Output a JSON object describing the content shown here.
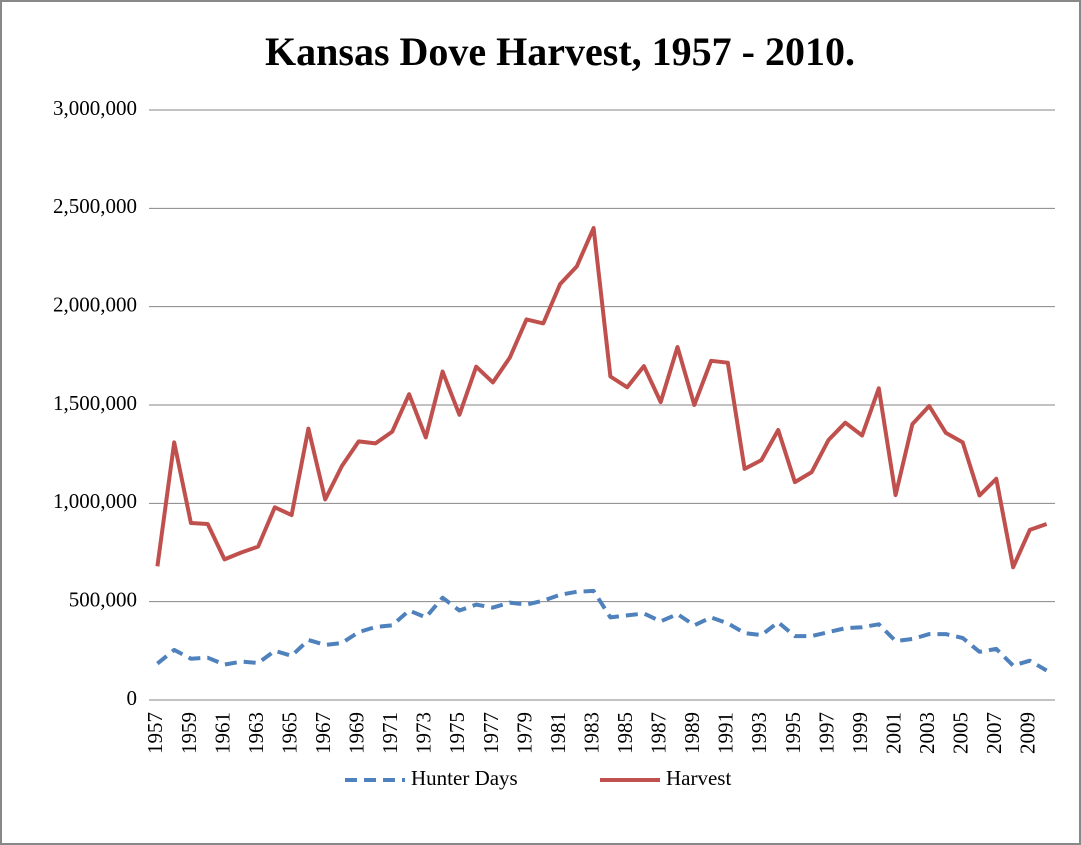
{
  "chart_data": {
    "type": "line",
    "title": "Kansas Dove Harvest, 1957 - 2010.",
    "categories": [
      "1957",
      null,
      "1959",
      null,
      "1961",
      null,
      "1963",
      null,
      "1965",
      null,
      "1967",
      null,
      "1969",
      null,
      "1971",
      null,
      "1973",
      null,
      "1975",
      null,
      "1977",
      null,
      "1979",
      null,
      "1981",
      null,
      "1983",
      null,
      "1985",
      null,
      "1987",
      null,
      "1989",
      null,
      "1991",
      null,
      "1993",
      null,
      "1995",
      null,
      "1997",
      null,
      "1999",
      null,
      "2001",
      null,
      "2003",
      null,
      "2005",
      null,
      "2007",
      null,
      "2009",
      null
    ],
    "series": [
      {
        "name": "Hunter Days",
        "color": "#4f81bd",
        "dashed": true,
        "values": [
          185000,
          255000,
          210000,
          215000,
          180000,
          195000,
          188000,
          250000,
          225000,
          305000,
          280000,
          290000,
          345000,
          371000,
          380000,
          455000,
          420000,
          520000,
          455000,
          485000,
          470000,
          495000,
          485000,
          505000,
          535000,
          550000,
          555000,
          420000,
          430000,
          440000,
          400000,
          437000,
          380000,
          420000,
          390000,
          340000,
          330000,
          395000,
          325000,
          325000,
          345000,
          365000,
          370000,
          385000,
          300000,
          310000,
          335000,
          335000,
          315000,
          245000,
          260000,
          175000,
          200000,
          150000
        ]
      },
      {
        "name": "Harvest",
        "color": "#c0504d",
        "dashed": false,
        "values": [
          680000,
          1310000,
          900000,
          895000,
          715000,
          750000,
          780000,
          980000,
          940000,
          1380000,
          1020000,
          1190000,
          1315000,
          1305000,
          1365000,
          1555000,
          1335000,
          1670000,
          1450000,
          1695000,
          1615000,
          1740000,
          1935000,
          1915000,
          2115000,
          2205000,
          2400000,
          1645000,
          1590000,
          1698000,
          1515000,
          1795000,
          1500000,
          1725000,
          1715000,
          1175000,
          1220000,
          1373000,
          1108000,
          1159000,
          1322000,
          1410000,
          1345000,
          1585000,
          1042000,
          1403000,
          1495000,
          1358000,
          1310000,
          1040000,
          1125000,
          675000,
          865000,
          895000
        ]
      }
    ],
    "ylim": [
      0,
      3000000
    ],
    "yticks": [
      0,
      {
        "value": 500000,
        "label": "500,000"
      },
      {
        "value": 1000000,
        "label": "1,000,000"
      },
      {
        "value": 1500000,
        "label": "1,500,000"
      },
      {
        "value": 2000000,
        "label": "2,000,000"
      },
      {
        "value": 2500000,
        "label": "2,500,000"
      },
      {
        "value": 3000000,
        "label": "3,000,000"
      }
    ],
    "grid": true,
    "legend": "bottom"
  }
}
